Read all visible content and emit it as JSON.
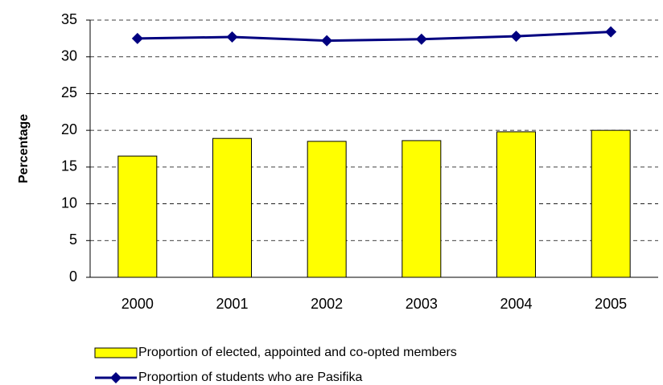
{
  "chart_data": {
    "type": "bar",
    "y_label": "Percentage",
    "categories": [
      "2000",
      "2001",
      "2002",
      "2003",
      "2004",
      "2005"
    ],
    "series": [
      {
        "name": "Proportion of elected, appointed and co-opted members",
        "type": "bar",
        "color": "#ffff00",
        "values": [
          16.5,
          18.9,
          18.5,
          18.6,
          19.8,
          20.0
        ]
      },
      {
        "name": "Proportion of students who are Pasifika",
        "type": "line",
        "color": "#000080",
        "values": [
          32.5,
          32.7,
          32.2,
          32.4,
          32.8,
          33.4
        ]
      }
    ],
    "ylim": [
      0,
      35
    ],
    "yticks": [
      0,
      5,
      10,
      15,
      20,
      25,
      30,
      35
    ],
    "grid": true,
    "legend": "bottom"
  }
}
